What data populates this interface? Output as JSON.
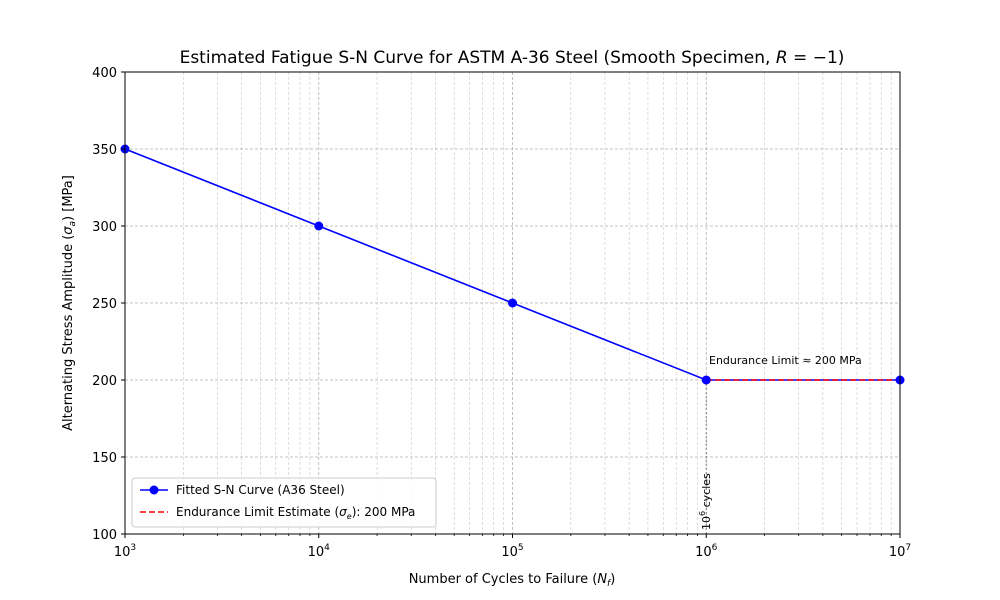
{
  "chart_data": {
    "type": "line",
    "title": "Estimated Fatigue S-N Curve for ASTM A-36 Steel (Smooth Specimen, R = −1)",
    "xlabel": "Number of Cycles to Failure (N_f)",
    "ylabel": "Alternating Stress Amplitude (σ_a) [MPa]",
    "x_scale": "log",
    "xlim": [
      1000,
      10000000
    ],
    "ylim": [
      100,
      400
    ],
    "grid": true,
    "legend_position": "lower-left",
    "x_ticks": [
      {
        "value": 1000,
        "base": "10",
        "exp": "3"
      },
      {
        "value": 10000,
        "base": "10",
        "exp": "4"
      },
      {
        "value": 100000,
        "base": "10",
        "exp": "5"
      },
      {
        "value": 1000000,
        "base": "10",
        "exp": "6"
      },
      {
        "value": 10000000,
        "base": "10",
        "exp": "7"
      }
    ],
    "y_ticks": [
      "100",
      "150",
      "200",
      "250",
      "300",
      "350",
      "400"
    ],
    "series": [
      {
        "name": "Fitted S-N Curve (A36 Steel)",
        "color": "#0000ff",
        "style": "solid-with-markers",
        "x": [
          1000,
          10000,
          100000,
          1000000,
          10000000
        ],
        "y": [
          350,
          300,
          250,
          200,
          200
        ]
      },
      {
        "name": "Endurance Limit Estimate (σ_e): 200  MPa",
        "color": "#ff0000",
        "style": "dashed",
        "x": [
          1000000,
          10000000
        ],
        "y": [
          200,
          200
        ]
      }
    ],
    "annotations": [
      {
        "text": "Endurance Limit ≈ 200 MPa",
        "x": 1000000,
        "y": 200
      },
      {
        "text_base": "10",
        "text_exp": "6",
        "text_rest": " cycles",
        "x": 1000000,
        "y": 100,
        "rotation": -90
      }
    ]
  }
}
